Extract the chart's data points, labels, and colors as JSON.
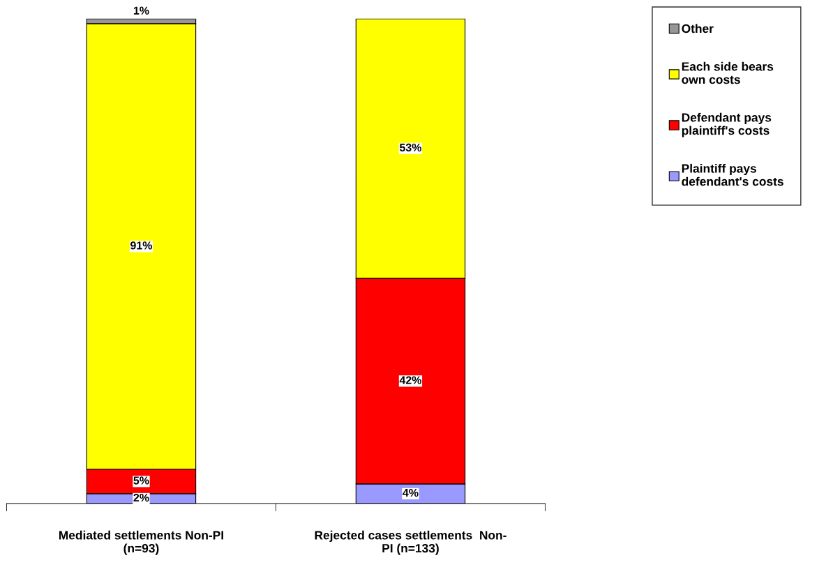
{
  "chart_data": {
    "type": "bar",
    "stacked": true,
    "categories": [
      "Mediated settlements Non-PI\n(n=93)",
      "Rejected cases settlements  Non-\nPI (n=133)"
    ],
    "series": [
      {
        "name": "Plaintiff pays\ndefendant's costs",
        "color": "#9999ff",
        "values": [
          2,
          4
        ],
        "value_labels": [
          "2%",
          "4%"
        ]
      },
      {
        "name": "Defendant pays\nplaintiff's costs",
        "color": "#ff0000",
        "values": [
          5,
          42
        ],
        "value_labels": [
          "5%",
          "42%"
        ]
      },
      {
        "name": "Each side bears\nown costs",
        "color": "#ffff00",
        "values": [
          91,
          53
        ],
        "value_labels": [
          "91%",
          "53%"
        ]
      },
      {
        "name": "Other",
        "color": "#969696",
        "values": [
          1,
          null
        ],
        "value_labels": [
          "1%",
          null
        ]
      }
    ],
    "legend": "right",
    "grid": false
  }
}
